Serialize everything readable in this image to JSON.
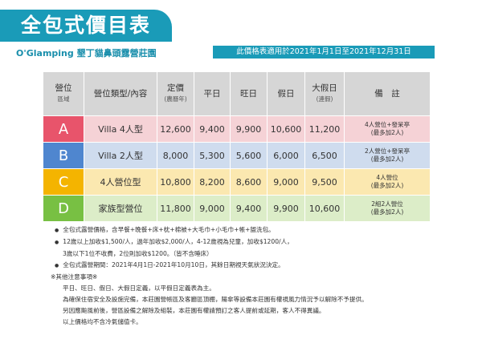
{
  "header": {
    "title": "全包式價目表",
    "subtitle": "O'Glamping 墾丁貓鼻頭露營莊園",
    "validity": "此價格表適用於2021年1月1日至2021年12月31日"
  },
  "table": {
    "columns": [
      [
        "營位",
        "區域"
      ],
      [
        "營位類型/內容"
      ],
      [
        "定價",
        "(農曆年)"
      ],
      [
        "平日"
      ],
      [
        "旺日"
      ],
      [
        "假日"
      ],
      [
        "大假日",
        "(連假)"
      ],
      [
        "備　註"
      ]
    ],
    "rows": [
      {
        "zone": "A",
        "type": "Villa 4人型",
        "prices": [
          "12,600",
          "9,400",
          "9,900",
          "10,600",
          "11,200"
        ],
        "note": [
          "4人營位+發呆亭",
          "(最多加2人)"
        ]
      },
      {
        "zone": "B",
        "type": "Villa 2人型",
        "prices": [
          "8,000",
          "5,300",
          "5,600",
          "6,000",
          "6,500"
        ],
        "note": [
          "2人營位+發呆亭",
          "(最多加2人)"
        ]
      },
      {
        "zone": "C",
        "type": "4人營位型",
        "prices": [
          "10,800",
          "8,200",
          "8,600",
          "9,000",
          "9,500"
        ],
        "note": [
          "4人營位",
          "(最多加2人)"
        ]
      },
      {
        "zone": "D",
        "type": "家族型營位",
        "prices": [
          "11,800",
          "9,000",
          "9,400",
          "9,900",
          "10,600"
        ],
        "note": [
          "2組2人營位",
          "(最多加2人)"
        ]
      }
    ]
  },
  "notes": {
    "bullets": [
      [
        "全包式露營價格，含早餐+晚餐+床+枕+棉被+大毛巾+小毛巾+帳+盥洗包。"
      ],
      [
        "12歲以上加收$1,500/人，過年加收$2,000/人，4-12歲視為兒童，加收$1200/人，",
        "3歲以下1位不收費，2位則加收$1200。（皆不含睡床）"
      ],
      [
        "全包式露營期間：2021年4月1日-2021年10月10日，其餘日期視天氣狀況決定。"
      ]
    ],
    "other_title": "※其他注意事項※",
    "other": [
      "平日、旺日、假日、大假日定義，以平假日定義表為主。",
      "為確保住宿安全及設施完備，本莊園營帳區及客廳區頂棚，陽傘等設備本莊園有權視風力情況予以解除不予提供。",
      "另因應颱風前後，營區設備之解除及組裝，本莊園有權請預訂之客人提前或延期，客人不得異議。",
      "以上價格均不含冷氣儲值卡。"
    ]
  }
}
